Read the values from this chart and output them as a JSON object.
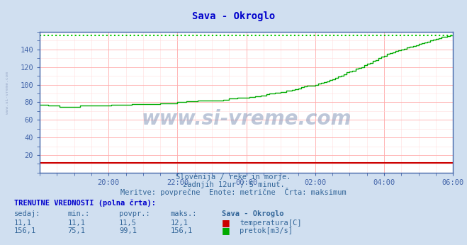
{
  "title": "Sava - Okroglo",
  "title_color": "#0000cc",
  "bg_color": "#d0dff0",
  "plot_bg_color": "#ffffff",
  "grid_color_major": "#ffaaaa",
  "grid_color_minor": "#ffdddd",
  "xlim": [
    0,
    144
  ],
  "ylim": [
    0,
    160
  ],
  "yticks": [
    20,
    40,
    60,
    80,
    100,
    120,
    140
  ],
  "xtick_labels": [
    "20:00",
    "22:00",
    "00:00",
    "02:00",
    "04:00",
    "06:00"
  ],
  "xtick_positions": [
    24,
    48,
    72,
    96,
    120,
    144
  ],
  "watermark_text": "www.si-vreme.com",
  "subtitle1": "Slovenija / reke in morje.",
  "subtitle2": "zadnjih 12ur / 5 minut.",
  "subtitle3": "Meritve: povprečne  Enote: metrične  Črta: maksimum",
  "table_header": "TRENUTNE VREDNOSTI (polna črta):",
  "col_headers": [
    "sedaj:",
    "min.:",
    "povpr.:",
    "maks.:",
    "Sava - Okroglo"
  ],
  "row1": [
    "11,1",
    "11,1",
    "11,5",
    "12,1",
    "temperatura[C]"
  ],
  "row2": [
    "156,1",
    "75,1",
    "99,1",
    "156,1",
    "pretok[m3/s]"
  ],
  "temp_color": "#cc0000",
  "flow_color": "#00aa00",
  "max_line_color": "#00cc00",
  "max_line_value": 156.1,
  "temp_line_value": 11.1,
  "text_color": "#336699",
  "axis_color": "#4466aa",
  "flow_data_x": [
    0,
    1,
    2,
    3,
    4,
    5,
    6,
    7,
    8,
    9,
    10,
    11,
    12,
    13,
    14,
    15,
    16,
    17,
    18,
    19,
    20,
    21,
    22,
    23,
    24,
    25,
    26,
    27,
    28,
    29,
    30,
    31,
    32,
    33,
    34,
    35,
    36,
    37,
    38,
    39,
    40,
    41,
    42,
    43,
    44,
    45,
    46,
    47,
    48,
    49,
    50,
    51,
    52,
    53,
    54,
    55,
    56,
    57,
    58,
    59,
    60,
    61,
    62,
    63,
    64,
    65,
    66,
    67,
    68,
    69,
    70,
    71,
    72,
    73,
    74,
    75,
    76,
    77,
    78,
    79,
    80,
    81,
    82,
    83,
    84,
    85,
    86,
    87,
    88,
    89,
    90,
    91,
    92,
    93,
    94,
    95,
    96,
    97,
    98,
    99,
    100,
    101,
    102,
    103,
    104,
    105,
    106,
    107,
    108,
    109,
    110,
    111,
    112,
    113,
    114,
    115,
    116,
    117,
    118,
    119,
    120,
    121,
    122,
    123,
    124,
    125,
    126,
    127,
    128,
    129,
    130,
    131,
    132,
    133,
    134,
    135,
    136,
    137,
    138,
    139,
    140,
    141,
    142,
    143,
    144
  ],
  "flow_data_y": [
    77,
    77,
    77,
    76,
    76,
    76,
    76,
    75,
    75,
    75,
    75,
    75,
    75,
    75,
    76,
    76,
    76,
    76,
    76,
    76,
    76,
    76,
    76,
    76,
    76,
    77,
    77,
    77,
    77,
    77,
    77,
    77,
    78,
    78,
    78,
    78,
    78,
    78,
    78,
    78,
    78,
    78,
    79,
    79,
    79,
    79,
    79,
    79,
    80,
    80,
    80,
    81,
    81,
    81,
    81,
    82,
    82,
    82,
    82,
    82,
    82,
    82,
    82,
    82,
    83,
    83,
    84,
    84,
    84,
    85,
    85,
    85,
    85,
    86,
    86,
    87,
    87,
    88,
    88,
    89,
    90,
    90,
    91,
    91,
    92,
    92,
    93,
    93,
    94,
    95,
    96,
    97,
    98,
    99,
    99,
    99,
    100,
    101,
    102,
    103,
    104,
    105,
    106,
    108,
    109,
    110,
    112,
    114,
    115,
    116,
    118,
    119,
    120,
    122,
    124,
    125,
    127,
    128,
    130,
    132,
    133,
    135,
    136,
    137,
    138,
    139,
    140,
    141,
    142,
    143,
    144,
    145,
    146,
    147,
    148,
    149,
    150,
    151,
    152,
    153,
    154,
    154,
    155,
    156,
    156
  ],
  "temp_data_x": [
    0,
    144
  ],
  "temp_data_y": [
    11.1,
    11.1
  ],
  "left_watermark": "www.si-vreme.com"
}
